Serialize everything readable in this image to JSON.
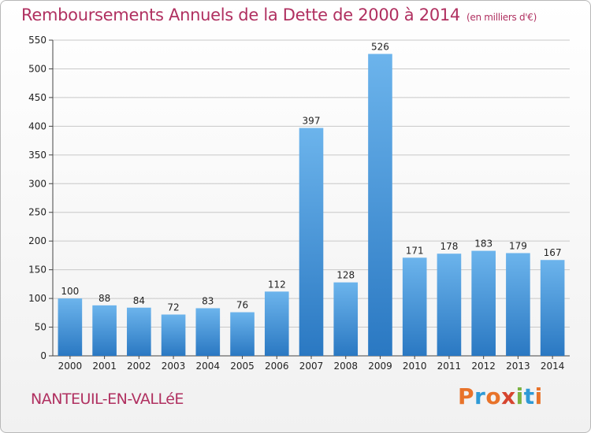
{
  "header": {
    "title": "Remboursements Annuels de la Dette de 2000 à 2014",
    "unit_note": "(en milliers d'€)"
  },
  "footer": {
    "commune": "NANTEUIL-EN-VALLéE",
    "logo_letters": [
      "P",
      "r",
      "o",
      "x",
      "i",
      "t",
      "i"
    ],
    "logo_colors": [
      "#e8732a",
      "#2e9ad6",
      "#e8732a",
      "#d6452f",
      "#7cb342",
      "#2e9ad6",
      "#e8732a"
    ]
  },
  "colors": {
    "bar_light": "#6cb4ec",
    "bar_dark": "#2a78c2",
    "title": "#b03060",
    "grid": "#c8c8c8"
  },
  "chart_data": {
    "type": "bar",
    "title": "Remboursements Annuels de la Dette de 2000 à 2014",
    "xlabel": "",
    "ylabel": "",
    "categories": [
      "2000",
      "2001",
      "2002",
      "2003",
      "2004",
      "2005",
      "2006",
      "2007",
      "2008",
      "2009",
      "2010",
      "2011",
      "2012",
      "2013",
      "2014"
    ],
    "values": [
      100,
      88,
      84,
      72,
      83,
      76,
      112,
      397,
      128,
      526,
      171,
      178,
      183,
      179,
      167
    ],
    "ylim": [
      0,
      550
    ],
    "yticks": [
      0,
      50,
      100,
      150,
      200,
      250,
      300,
      350,
      400,
      450,
      500,
      550
    ],
    "grid": true,
    "legend": "none"
  }
}
